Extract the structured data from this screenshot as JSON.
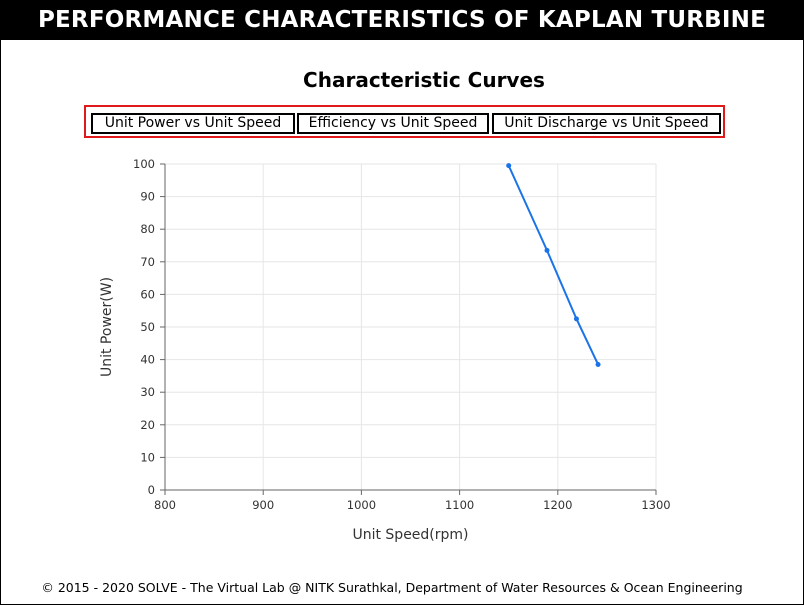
{
  "header": {
    "title": "PERFORMANCE CHARACTERISTICS OF KAPLAN TURBINE"
  },
  "main": {
    "chart_title": "Characteristic Curves",
    "buttons": [
      {
        "label": "Unit Power vs Unit Speed"
      },
      {
        "label": "Efficiency vs Unit Speed"
      },
      {
        "label": "Unit Discharge vs Unit Speed"
      }
    ]
  },
  "chart_data": {
    "type": "line",
    "x": [
      1150,
      1189,
      1219,
      1241
    ],
    "series": [
      {
        "values": [
          99.5,
          73.5,
          52.5,
          38.5
        ],
        "color": "#1a73e8"
      }
    ],
    "xlabel": "Unit Speed(rpm)",
    "ylabel": "Unit Power(W)",
    "xlim": [
      800,
      1300
    ],
    "ylim": [
      0,
      100
    ],
    "xticks": [
      800,
      900,
      1000,
      1100,
      1200,
      1300
    ],
    "yticks": [
      0,
      10,
      20,
      30,
      40,
      50,
      60,
      70,
      80,
      90,
      100
    ],
    "grid": true,
    "legend": "none"
  },
  "footer": {
    "text": "© 2015 - 2020 SOLVE - The Virtual Lab @ NITK Surathkal, Department of Water Resources & Ocean Engineering"
  }
}
